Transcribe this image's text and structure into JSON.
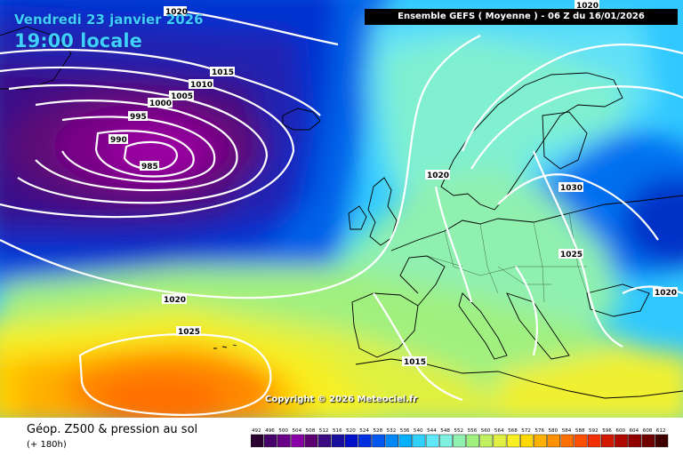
{
  "header": {
    "run_info": "Ensemble GEFS  ( Moyenne )  -  06 Z du 16/01/2026",
    "valid_date": "Vendredi 23 janvier 2026",
    "valid_time": "19:00 locale"
  },
  "copyright": "Copyright © 2026 Meteociel.fr",
  "footer": {
    "title": "Géop. Z500 & pression au sol",
    "lead": "(+ 180h)"
  },
  "scale": {
    "values": [
      "492",
      "496",
      "500",
      "504",
      "508",
      "512",
      "516",
      "520",
      "524",
      "528",
      "532",
      "536",
      "540",
      "544",
      "548",
      "552",
      "556",
      "560",
      "564",
      "568",
      "572",
      "576",
      "580",
      "584",
      "588",
      "592",
      "596",
      "600",
      "604",
      "608",
      "612"
    ],
    "colors": [
      "#2a0030",
      "#45006a",
      "#6a0088",
      "#8a00a8",
      "#5a0070",
      "#3a0a80",
      "#1a10a0",
      "#0010c8",
      "#0030e0",
      "#0058f0",
      "#0088f8",
      "#00b0ff",
      "#30d0ff",
      "#60e8f8",
      "#80f0e0",
      "#90f0b0",
      "#a0f080",
      "#c0f060",
      "#e0f040",
      "#f8f020",
      "#ffd800",
      "#ffb000",
      "#ff9000",
      "#ff7000",
      "#ff5000",
      "#f03000",
      "#d01800",
      "#b00800",
      "#900000",
      "#700000",
      "#400000"
    ]
  },
  "isobars": {
    "labels": [
      "1020",
      "1015",
      "1010",
      "1005",
      "1000",
      "995",
      "990",
      "985",
      "1020",
      "1030",
      "1025",
      "1020",
      "1020",
      "1025",
      "1015",
      "1020"
    ]
  },
  "map_colors": {
    "low_core": "#7a0088",
    "trough": "#2020b0",
    "cold_blue": "#0050e0",
    "cyan": "#30d0ff",
    "green": "#a0f080",
    "yellow": "#f8f020",
    "orange": "#ff9000",
    "isobar": "#ffffff",
    "coast": "#000000"
  }
}
